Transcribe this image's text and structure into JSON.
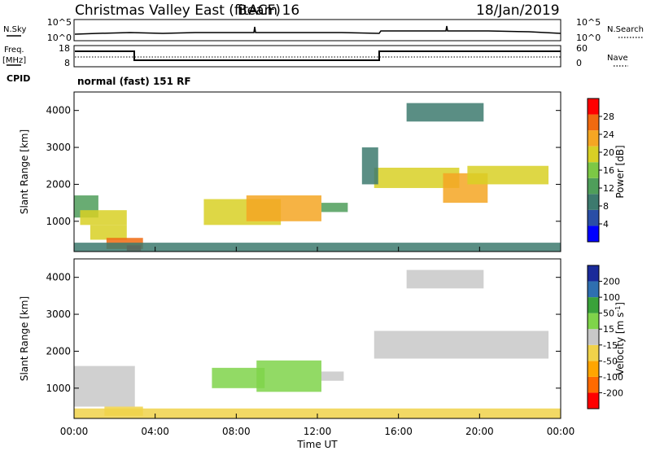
{
  "header": {
    "title": "Christmas Valley East (fitACF)",
    "beam": "Beam 16",
    "date": "18/Jan/2019"
  },
  "strip1": {
    "left_label": "N.Sky",
    "right_label": "N.Search",
    "left_ticks": [
      "10^5",
      "10^0"
    ],
    "right_ticks": [
      "10^5",
      "10^0"
    ]
  },
  "strip2": {
    "left_label_1": "Freq.",
    "left_label_2": "[MHz]",
    "right_label": "Nave",
    "left_ticks": [
      "18",
      "8"
    ],
    "right_ticks": [
      "60",
      "0"
    ]
  },
  "cpid": {
    "label": "CPID",
    "value": "normal (fast) 151 RF"
  },
  "colors": {
    "power": [
      "#0000ff",
      "#2a4ea6",
      "#3d7a6e",
      "#4f9e5a",
      "#7cc845",
      "#d8d025",
      "#f5a623",
      "#f06a10",
      "#ff0000"
    ],
    "velocity": [
      "#ff0000",
      "#ff6a00",
      "#ffa500",
      "#f0d24a",
      "#c8c8c8",
      "#7fd44a",
      "#3aa23a",
      "#2f6fb0",
      "#1a2a9a"
    ]
  },
  "chart_data": [
    {
      "type": "heatmap",
      "name": "power",
      "ylabel": "Slant Range [km]",
      "ylim": [
        180,
        4500
      ],
      "yticks": [
        "1000",
        "2000",
        "3000",
        "4000"
      ],
      "colorbar": {
        "label": "Power [dB]",
        "ticks": [
          "4",
          "8",
          "12",
          "16",
          "20",
          "24",
          "28"
        ],
        "range": [
          0,
          32
        ]
      },
      "cells": [
        {
          "t0": 0.0,
          "t1": 1.2,
          "r0": 1100,
          "r1": 1700,
          "v": 12
        },
        {
          "t0": 0.3,
          "t1": 2.6,
          "r0": 900,
          "r1": 1300,
          "v": 18
        },
        {
          "t0": 0.8,
          "t1": 2.6,
          "r0": 500,
          "r1": 900,
          "v": 20
        },
        {
          "t0": 1.6,
          "t1": 3.4,
          "r0": 250,
          "r1": 550,
          "v": 26
        },
        {
          "t0": 2.6,
          "t1": 3.3,
          "r0": 200,
          "r1": 350,
          "v": 30
        },
        {
          "t0": 6.4,
          "t1": 10.2,
          "r0": 900,
          "r1": 1600,
          "v": 18
        },
        {
          "t0": 8.5,
          "t1": 12.2,
          "r0": 1000,
          "r1": 1700,
          "v": 22
        },
        {
          "t0": 12.2,
          "t1": 13.5,
          "r0": 1250,
          "r1": 1500,
          "v": 14
        },
        {
          "t0": 14.8,
          "t1": 19.0,
          "r0": 1900,
          "r1": 2450,
          "v": 20
        },
        {
          "t0": 18.2,
          "t1": 20.4,
          "r0": 1500,
          "r1": 2300,
          "v": 24
        },
        {
          "t0": 19.4,
          "t1": 23.4,
          "r0": 2000,
          "r1": 2500,
          "v": 18
        },
        {
          "t0": 16.4,
          "t1": 20.2,
          "r0": 3700,
          "r1": 4200,
          "v": 10
        },
        {
          "t0": 14.2,
          "t1": 15.0,
          "r0": 2000,
          "r1": 3000,
          "v": 8
        },
        {
          "t0": 0.0,
          "t1": 24.0,
          "r0": 180,
          "r1": 420,
          "v": 8
        }
      ]
    },
    {
      "type": "heatmap",
      "name": "velocity",
      "xlabel": "Time UT",
      "ylabel": "Slant Range [km]",
      "xlim": [
        0,
        24
      ],
      "xticks": [
        "00:00",
        "04:00",
        "08:00",
        "12:00",
        "16:00",
        "20:00",
        "00:00"
      ],
      "ylim": [
        180,
        4500
      ],
      "yticks": [
        "1000",
        "2000",
        "3000",
        "4000"
      ],
      "colorbar": {
        "label": "Velocity [m s^-1]",
        "ticks": [
          "200",
          "100",
          "50",
          "15",
          "-15",
          "-50",
          "-100",
          "-200"
        ],
        "range": [
          -250,
          250
        ]
      },
      "cells": [
        {
          "t0": 0.0,
          "t1": 3.0,
          "r0": 500,
          "r1": 1600,
          "v": 0
        },
        {
          "t0": 1.5,
          "t1": 3.4,
          "r0": 250,
          "r1": 500,
          "v": -30
        },
        {
          "t0": 6.8,
          "t1": 9.4,
          "r0": 1000,
          "r1": 1550,
          "v": 30
        },
        {
          "t0": 9.0,
          "t1": 12.2,
          "r0": 900,
          "r1": 1750,
          "v": 40
        },
        {
          "t0": 12.2,
          "t1": 13.3,
          "r0": 1200,
          "r1": 1450,
          "v": -20
        },
        {
          "t0": 14.8,
          "t1": 23.4,
          "r0": 1800,
          "r1": 2550,
          "v": 0
        },
        {
          "t0": 16.4,
          "t1": 20.2,
          "r0": 3700,
          "r1": 4200,
          "v": 0
        },
        {
          "t0": 0.0,
          "t1": 24.0,
          "r0": 180,
          "r1": 450,
          "v": -40
        }
      ]
    }
  ]
}
